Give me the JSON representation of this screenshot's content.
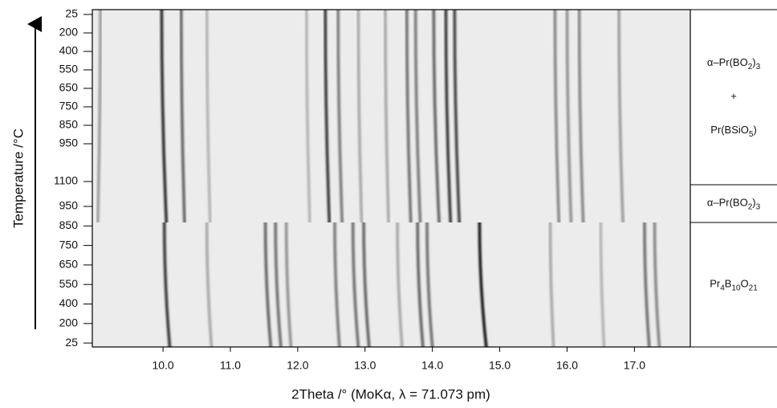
{
  "chart_data": {
    "type": "diffraction-map",
    "xlabel": "2Theta /°  (MoKα, λ = 71.073 pm)",
    "ylabel": "Temperature /°C",
    "xlim": [
      8.95,
      17.83
    ],
    "xticks": [
      {
        "value": 10,
        "label": "10.0"
      },
      {
        "value": 11,
        "label": "11.0"
      },
      {
        "value": 12,
        "label": "12.0"
      },
      {
        "value": 13,
        "label": "13.0"
      },
      {
        "value": 14,
        "label": "14.0"
      },
      {
        "value": 15,
        "label": "15.0"
      },
      {
        "value": 16,
        "label": "16.0"
      },
      {
        "value": 17,
        "label": "17.0"
      }
    ],
    "categories": [
      "25",
      "200",
      "400",
      "550",
      "650",
      "750",
      "850",
      "950",
      "1100",
      "950",
      "850",
      "750",
      "650",
      "550",
      "400",
      "200",
      "25"
    ],
    "color": "#000000",
    "pattern_regions": [
      {
        "rows": [
          0,
          9
        ],
        "peaks": [
          [
            9.07,
            9.03,
            0.35
          ],
          [
            9.98,
            10.05,
            0.85
          ],
          [
            10.27,
            10.32,
            0.6
          ],
          [
            10.65,
            10.7,
            0.25
          ],
          [
            12.13,
            12.18,
            0.25
          ],
          [
            12.41,
            12.47,
            0.8
          ],
          [
            12.6,
            12.66,
            0.5
          ],
          [
            12.9,
            12.95,
            0.3
          ],
          [
            13.3,
            13.35,
            0.3
          ],
          [
            13.62,
            13.68,
            0.55
          ],
          [
            13.75,
            13.82,
            0.5
          ],
          [
            14.02,
            14.1,
            0.6
          ],
          [
            14.2,
            14.27,
            0.8
          ],
          [
            14.33,
            14.4,
            0.75
          ],
          [
            15.82,
            15.88,
            0.45
          ],
          [
            16.0,
            16.06,
            0.4
          ],
          [
            16.18,
            16.24,
            0.45
          ],
          [
            16.77,
            16.83,
            0.35
          ]
        ]
      },
      {
        "rows": [
          10,
          16
        ],
        "peaks": [
          [
            10.02,
            10.1,
            0.8
          ],
          [
            10.65,
            10.72,
            0.3
          ],
          [
            11.52,
            11.6,
            0.6
          ],
          [
            11.67,
            11.75,
            0.55
          ],
          [
            11.83,
            11.9,
            0.4
          ],
          [
            12.55,
            12.62,
            0.5
          ],
          [
            12.82,
            12.9,
            0.55
          ],
          [
            12.98,
            13.06,
            0.6
          ],
          [
            13.48,
            13.55,
            0.3
          ],
          [
            13.78,
            13.86,
            0.6
          ],
          [
            13.92,
            14.0,
            0.55
          ],
          [
            14.7,
            14.8,
            0.95
          ],
          [
            15.75,
            15.8,
            0.3
          ],
          [
            16.5,
            16.55,
            0.25
          ],
          [
            17.15,
            17.22,
            0.55
          ],
          [
            17.3,
            17.37,
            0.45
          ]
        ]
      }
    ],
    "phases": [
      {
        "rows": [
          0,
          8
        ],
        "lines": [
          [
            {
              "t": "α–Pr(BO"
            },
            {
              "sub": "2"
            },
            {
              "t": ")"
            },
            {
              "sub": "3"
            }
          ],
          [
            {
              "t": "+"
            }
          ],
          [
            {
              "t": "Pr(BSiO"
            },
            {
              "sub": "5"
            },
            {
              "t": ")"
            }
          ]
        ]
      },
      {
        "rows": [
          9,
          9
        ],
        "lines": [
          [
            {
              "t": "α–Pr(BO"
            },
            {
              "sub": "2"
            },
            {
              "t": ")"
            },
            {
              "sub": "3"
            }
          ]
        ]
      },
      {
        "rows": [
          10,
          16
        ],
        "lines": [
          [
            {
              "t": "Pr"
            },
            {
              "sub": "4"
            },
            {
              "t": "B"
            },
            {
              "sub": "10"
            },
            {
              "t": "O"
            },
            {
              "sub": "21"
            }
          ]
        ]
      }
    ]
  }
}
